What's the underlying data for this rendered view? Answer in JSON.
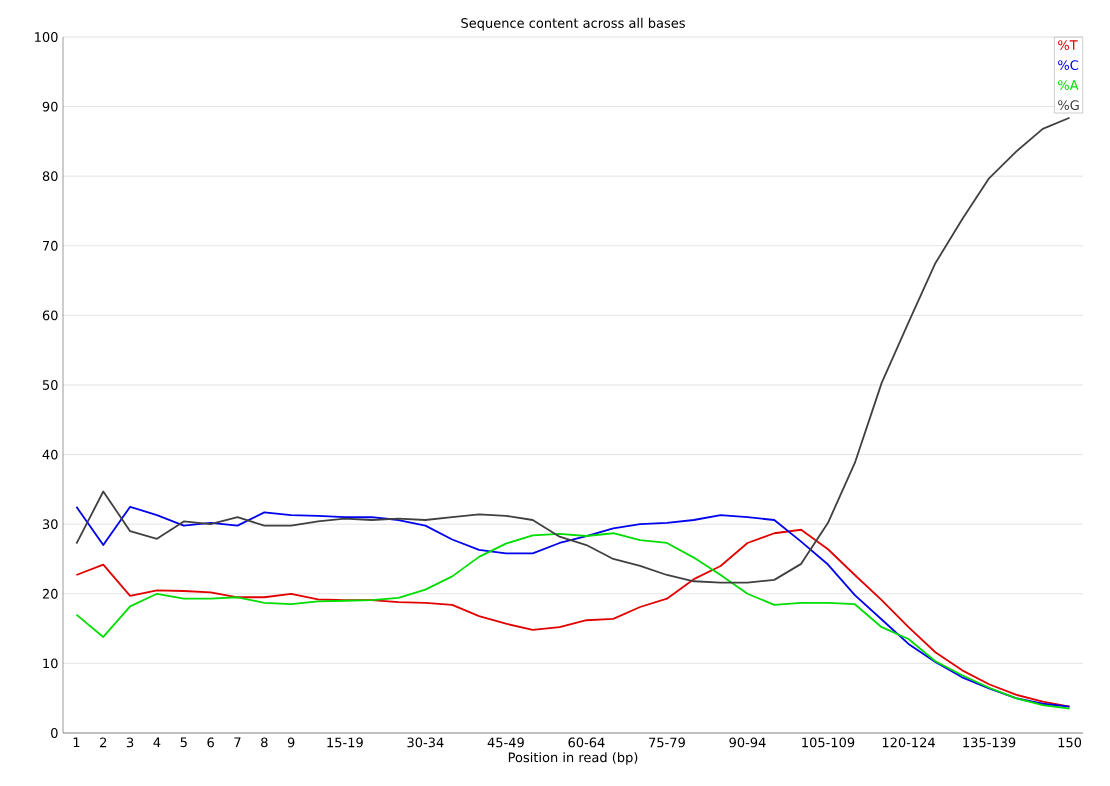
{
  "chart_data": {
    "type": "line",
    "title": "Sequence content across all bases",
    "xlabel": "Position in read (bp)",
    "categories": [
      "1",
      "2",
      "3",
      "4",
      "5",
      "6",
      "7",
      "8",
      "9",
      null,
      "15-19",
      null,
      null,
      "30-34",
      null,
      null,
      "45-49",
      null,
      null,
      "60-64",
      null,
      null,
      "75-79",
      null,
      null,
      "90-94",
      null,
      null,
      "105-109",
      null,
      null,
      "120-124",
      null,
      null,
      "135-139",
      null,
      null,
      "150"
    ],
    "series": [
      {
        "name": "%T",
        "color": "#e00000",
        "values": [
          22.7,
          24.2,
          19.7,
          20.5,
          20.4,
          20.2,
          19.5,
          19.5,
          20,
          19.2,
          19.1,
          19.1,
          18.8,
          18.7,
          18.4,
          16.8,
          15.7,
          14.8,
          15.2,
          16.2,
          16.4,
          18.1,
          19.3,
          22.1,
          24,
          27.3,
          28.7,
          29.2,
          26.4,
          22.7,
          19.1,
          15.2,
          11.6,
          9,
          7,
          5.5,
          4.5,
          3.8
        ]
      },
      {
        "name": "%C",
        "color": "#0000ee",
        "values": [
          32.5,
          27,
          32.5,
          31.3,
          29.8,
          30.2,
          29.8,
          31.7,
          31.3,
          31.2,
          31,
          31,
          30.6,
          29.8,
          27.8,
          26.3,
          25.8,
          25.8,
          27.3,
          28.3,
          29.4,
          30,
          30.2,
          30.6,
          31.3,
          31,
          30.6,
          27.5,
          24.2,
          19.8,
          16.3,
          12.8,
          10.2,
          8,
          6.4,
          5,
          4.2,
          3.8
        ]
      },
      {
        "name": "%A",
        "color": "#00dd00",
        "values": [
          17,
          13.8,
          18.2,
          20,
          19.3,
          19.3,
          19.5,
          18.7,
          18.5,
          18.9,
          19,
          19.1,
          19.4,
          20.6,
          22.5,
          25.3,
          27.2,
          28.4,
          28.6,
          28.3,
          28.7,
          27.7,
          27.3,
          25.2,
          22.7,
          20,
          18.4,
          18.7,
          18.7,
          18.5,
          15.2,
          13.5,
          10.3,
          8.3,
          6.5,
          5,
          4,
          3.5
        ]
      },
      {
        "name": "%G",
        "color": "#404040",
        "values": [
          27.2,
          34.7,
          29,
          27.9,
          30.4,
          30,
          31,
          29.8,
          29.8,
          30.4,
          30.8,
          30.6,
          30.8,
          30.6,
          31,
          31.4,
          31.2,
          30.6,
          28.2,
          27,
          25,
          24,
          22.7,
          21.8,
          21.6,
          21.6,
          22,
          24.3,
          30.2,
          38.8,
          50.3,
          59,
          67.5,
          73.8,
          79.7,
          83.5,
          86.8,
          88.4
        ]
      }
    ],
    "ylim": [
      0,
      100
    ],
    "yticks": [
      0,
      10,
      20,
      30,
      40,
      50,
      60,
      70,
      80,
      90,
      100
    ],
    "grid": "y",
    "legend": "top right",
    "marker": "none",
    "line_style": "solid"
  }
}
